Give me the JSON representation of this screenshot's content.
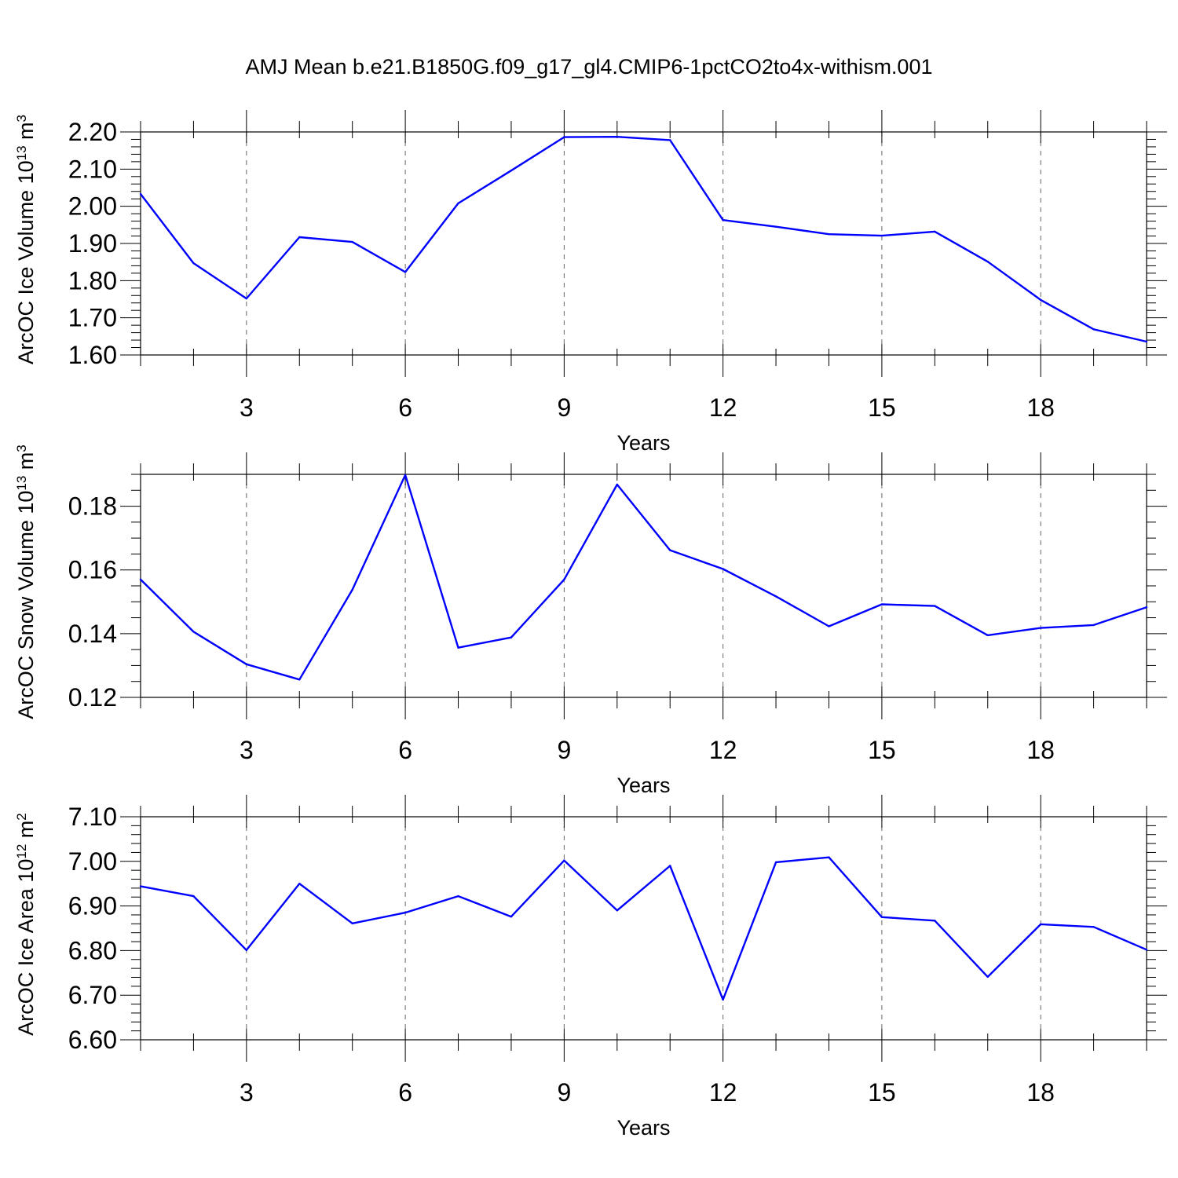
{
  "title": "AMJ Mean b.e21.B1850G.f09_g17_gl4.CMIP6-1pctCO2to4x-withism.001",
  "line_color": "#0000ff",
  "chart_data": [
    {
      "type": "line",
      "ylabel": {
        "main": "ArcOC Ice Volume 10",
        "sup1": "13",
        "mid": " m",
        "sup2": "3"
      },
      "xlabel": "Years",
      "xlim": [
        1,
        20
      ],
      "ylim": [
        1.6,
        2.2
      ],
      "yticks": [
        1.6,
        1.7,
        1.8,
        1.9,
        2.0,
        2.1,
        2.2
      ],
      "yticklabels": [
        "1.60",
        "1.70",
        "1.80",
        "1.90",
        "2.00",
        "2.10",
        "2.20"
      ],
      "yminor_step": 0.02,
      "xticks": [
        3,
        6,
        9,
        12,
        15,
        18
      ],
      "xticklabels": [
        "3",
        "6",
        "9",
        "12",
        "15",
        "18"
      ],
      "x": [
        1,
        2,
        3,
        4,
        5,
        6,
        7,
        8,
        9,
        10,
        11,
        12,
        13,
        14,
        15,
        16,
        17,
        18,
        19,
        20
      ],
      "values": [
        2.033,
        1.847,
        1.752,
        1.917,
        1.904,
        1.823,
        2.008,
        2.096,
        2.186,
        2.187,
        2.178,
        1.963,
        1.945,
        1.925,
        1.921,
        1.932,
        1.851,
        1.748,
        1.669,
        1.636
      ]
    },
    {
      "type": "line",
      "ylabel": {
        "main": "ArcOC Snow Volume 10",
        "sup1": "13",
        "mid": " m",
        "sup2": "3"
      },
      "xlabel": "Years",
      "xlim": [
        1,
        20
      ],
      "ylim": [
        0.12,
        0.19
      ],
      "yticks": [
        0.12,
        0.14,
        0.16,
        0.18
      ],
      "yticklabels": [
        "0.12",
        "0.14",
        "0.16",
        "0.18"
      ],
      "yminor_step": 0.005,
      "xticks": [
        3,
        6,
        9,
        12,
        15,
        18
      ],
      "xticklabels": [
        "3",
        "6",
        "9",
        "12",
        "15",
        "18"
      ],
      "x": [
        1,
        2,
        3,
        4,
        5,
        6,
        7,
        8,
        9,
        10,
        11,
        12,
        13,
        14,
        15,
        16,
        17,
        18,
        19,
        20
      ],
      "values": [
        0.157,
        0.1406,
        0.1304,
        0.1256,
        0.1538,
        0.1898,
        0.1356,
        0.1388,
        0.157,
        0.1868,
        0.1662,
        0.1603,
        0.1517,
        0.1423,
        0.1492,
        0.1487,
        0.1395,
        0.1418,
        0.1427,
        0.1483
      ]
    },
    {
      "type": "line",
      "ylabel": {
        "main": "ArcOC Ice Area 10",
        "sup1": "12",
        "mid": " m",
        "sup2": "2"
      },
      "xlabel": "Years",
      "xlim": [
        1,
        20
      ],
      "ylim": [
        6.6,
        7.1
      ],
      "yticks": [
        6.6,
        6.7,
        6.8,
        6.9,
        7.0,
        7.1
      ],
      "yticklabels": [
        "6.60",
        "6.70",
        "6.80",
        "6.90",
        "7.00",
        "7.10"
      ],
      "yminor_step": 0.02,
      "xticks": [
        3,
        6,
        9,
        12,
        15,
        18
      ],
      "xticklabels": [
        "3",
        "6",
        "9",
        "12",
        "15",
        "18"
      ],
      "x": [
        1,
        2,
        3,
        4,
        5,
        6,
        7,
        8,
        9,
        10,
        11,
        12,
        13,
        14,
        15,
        16,
        17,
        18,
        19,
        20
      ],
      "values": [
        6.944,
        6.922,
        6.801,
        6.95,
        6.861,
        6.885,
        6.922,
        6.876,
        7.002,
        6.89,
        6.99,
        6.69,
        6.998,
        7.009,
        6.875,
        6.867,
        6.741,
        6.859,
        6.853,
        6.802
      ]
    }
  ]
}
